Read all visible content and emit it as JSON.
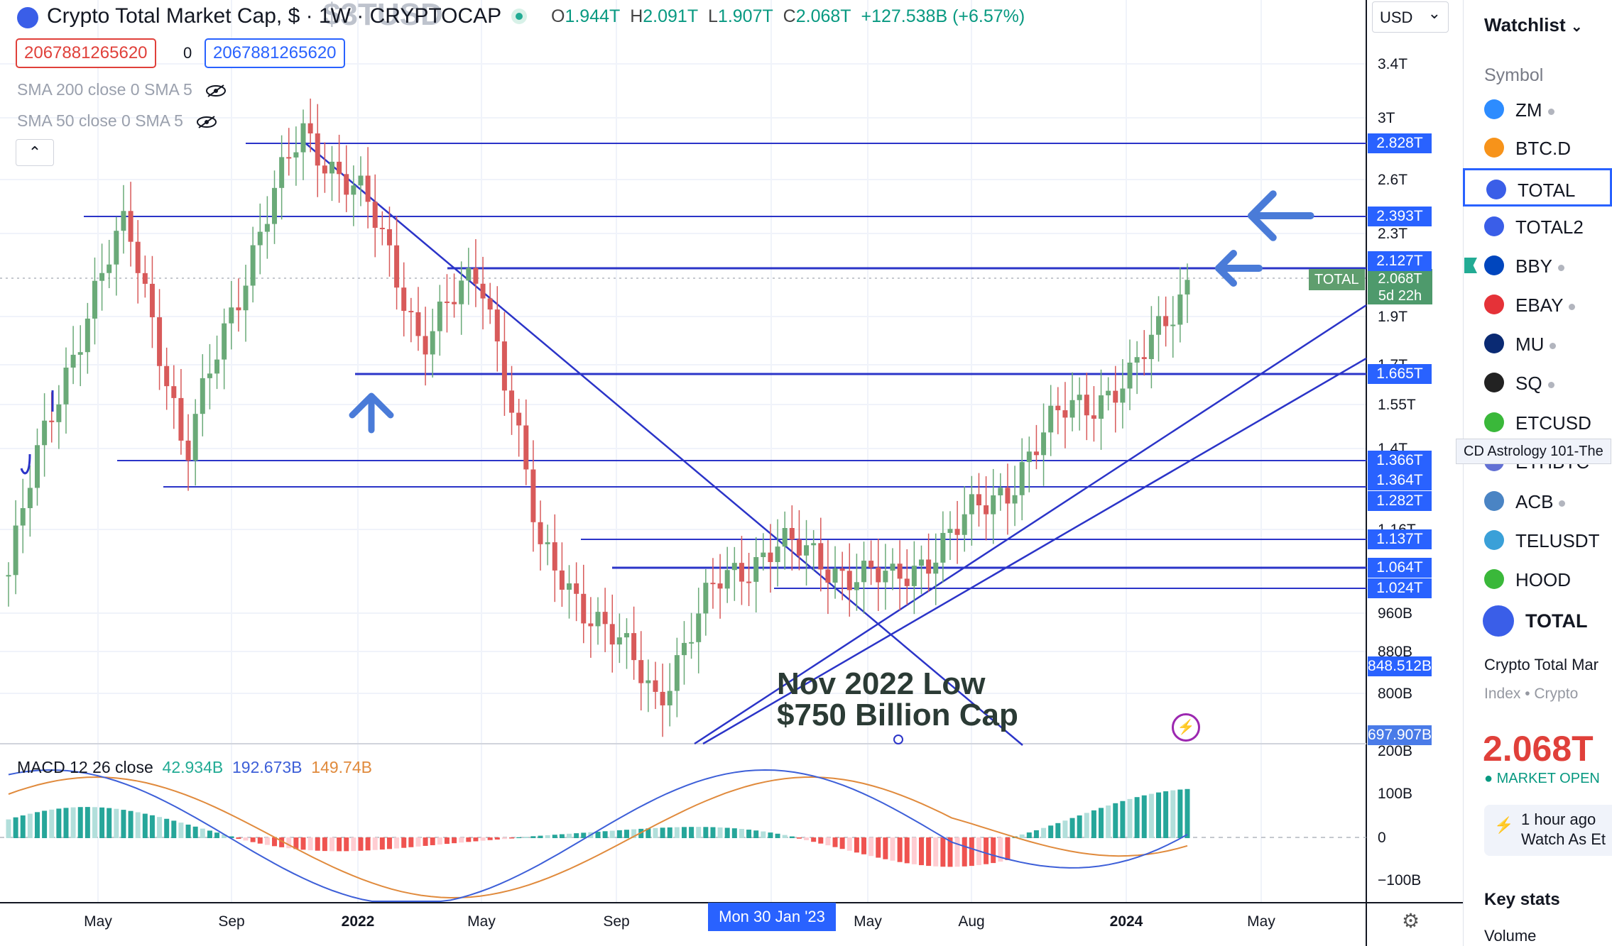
{
  "header": {
    "title": "Crypto Total Market Cap, $ · 1W · CRYPTOCAP",
    "ghost_symbol": "$3TUSD",
    "ohlc": {
      "o_label": "O",
      "o": "1.944T",
      "h_label": "H",
      "h": "2.091T",
      "l_label": "L",
      "l": "1.907T",
      "c_label": "C",
      "c": "2.068T",
      "change": "+127.538B (+6.57%)"
    },
    "value_box_red": "2067881265620",
    "value_box_blue": "2067881265620",
    "zero": "0"
  },
  "indicators": {
    "sma200": "SMA 200 close 0 SMA 5",
    "sma50": "SMA 50 close 0 SMA 5",
    "collapse_icon": "chevron-up",
    "macd_label": "MACD 12 26 close",
    "macd_v1": "42.934B",
    "macd_v2": "192.673B",
    "macd_v3": "149.74B"
  },
  "annotation": "Nov 2022 Low\n$750 Billion Cap",
  "crosshair_date": "Mon 30 Jan '23",
  "currency_select": "USD",
  "current_price": {
    "label": "TOTAL",
    "price": "2.068T",
    "countdown": "5d 22h"
  },
  "colors": {
    "up": "#6aaa78",
    "down": "#d85a5a",
    "lines": "#2b34c8",
    "accent": "#2962ff",
    "macd_line": "#3d5fd8",
    "signal_line": "#e08a3c"
  },
  "chart_data": {
    "type": "candlestick",
    "symbol": "TOTAL",
    "yscale": "log",
    "price_axis_ticks": [
      "3.4T",
      "3T",
      "2.6T",
      "2.3T",
      "1.9T",
      "1.7T",
      "1.55T",
      "1.4T",
      "1.16T",
      "960B",
      "880B",
      "800B"
    ],
    "price_tags": [
      "2.828T",
      "2.393T",
      "2.127T",
      "1.665T",
      "1.366T",
      "1.364T",
      "1.282T",
      "1.137T",
      "1.064T",
      "1.024T",
      "848.512B",
      "697.907B"
    ],
    "horizontal_levels": [
      "2.828T",
      "2.393T",
      "2.127T",
      "1.665T",
      "1.366T",
      "1.282T",
      "1.137T",
      "1.064T",
      "1.024T"
    ],
    "x_axis_ticks": [
      "May",
      "Sep",
      "2022",
      "May",
      "Sep",
      "May",
      "Aug",
      "2024",
      "May"
    ],
    "macd_axis_ticks": [
      "200B",
      "100B",
      "0",
      "−100B"
    ],
    "weekly_close_path": [
      1.05,
      1.7,
      2.35,
      1.35,
      2.1,
      2.9,
      2.5,
      1.8,
      2.1,
      1.1,
      0.95,
      0.79,
      1.02,
      1.13,
      1.07,
      1.03,
      1.15,
      1.3,
      1.55,
      1.62,
      2.068
    ]
  }
}
